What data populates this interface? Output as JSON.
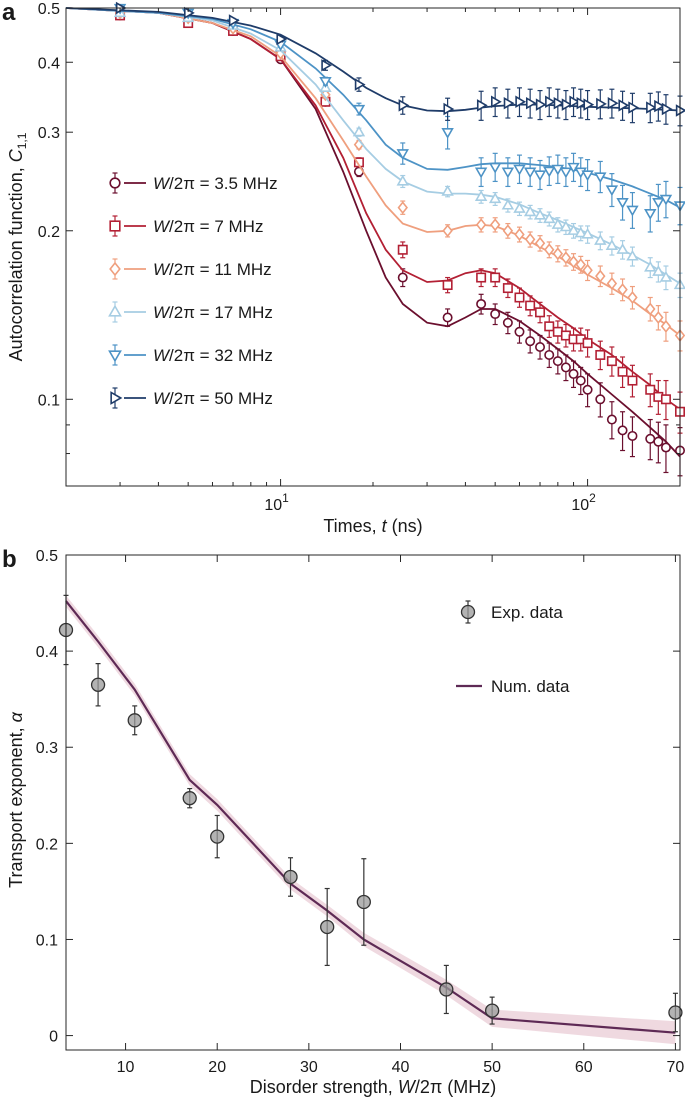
{
  "panel_a": {
    "label": "a",
    "ylabel_text": "Autocorrelation function, ",
    "ylabel_sym": "C",
    "ylabel_sub": "1,1",
    "xlabel_text": "Times, ",
    "xlabel_sym": "t",
    "xlabel_unit": " (ns)"
  },
  "panel_b": {
    "label": "b",
    "ylabel_text": "Transport exponent, ",
    "ylabel_sym": "α",
    "xlabel_text": "Disorder strength, ",
    "xlabel_sym": "W",
    "xlabel_mid": "/2π",
    "xlabel_unit": " (MHz)"
  },
  "chart_data": [
    {
      "type": "scatter",
      "panel": "a",
      "xscale": "log",
      "yscale": "log",
      "xlim": [
        2,
        200
      ],
      "ylim": [
        0.07,
        0.5
      ],
      "xlabel": "Times, t (ns)",
      "ylabel": "Autocorrelation function, C_1,1",
      "x_ticks": [
        {
          "value": 10,
          "base": "10",
          "exp": "1"
        },
        {
          "value": 100,
          "base": "10",
          "exp": "2"
        }
      ],
      "y_ticks": [
        0.1,
        0.2,
        0.3,
        0.4,
        0.5
      ],
      "y_tick_labels": [
        "0.1",
        "0.2",
        "0.3",
        "0.4",
        "0.5"
      ],
      "legend_position": "left-middle",
      "series": [
        {
          "name": "W/2π = 3.5 MHz",
          "label_sym": "W",
          "label_rest": "/2π = 3.5 MHz",
          "marker": "circle",
          "color": "#6b0f2e",
          "x": [
            3,
            5,
            7,
            10,
            14,
            18,
            25,
            35,
            45,
            50,
            55,
            60,
            65,
            70,
            75,
            80,
            85,
            90,
            95,
            100,
            110,
            120,
            130,
            140,
            160,
            170,
            180,
            200
          ],
          "y": [
            0.485,
            0.48,
            0.455,
            0.405,
            0.34,
            0.255,
            0.165,
            0.14,
            0.148,
            0.142,
            0.137,
            0.132,
            0.127,
            0.124,
            0.12,
            0.117,
            0.114,
            0.111,
            0.108,
            0.104,
            0.1,
            0.092,
            0.088,
            0.086,
            0.085,
            0.084,
            0.082,
            0.081
          ],
          "yerr": [
            0.004,
            0.004,
            0.004,
            0.004,
            0.005,
            0.005,
            0.006,
            0.005,
            0.006,
            0.006,
            0.006,
            0.006,
            0.006,
            0.006,
            0.006,
            0.006,
            0.006,
            0.006,
            0.006,
            0.007,
            0.007,
            0.007,
            0.007,
            0.007,
            0.007,
            0.007,
            0.008,
            0.008
          ],
          "fit_x": [
            2,
            4,
            6,
            8,
            10,
            13,
            16,
            19,
            22,
            25,
            30,
            35,
            40,
            45,
            50,
            60,
            70,
            80,
            90,
            100,
            120,
            140,
            160,
            180,
            200
          ],
          "fit_y": [
            0.5,
            0.49,
            0.47,
            0.44,
            0.405,
            0.33,
            0.255,
            0.2,
            0.165,
            0.148,
            0.137,
            0.135,
            0.14,
            0.145,
            0.145,
            0.138,
            0.13,
            0.123,
            0.117,
            0.111,
            0.102,
            0.095,
            0.089,
            0.084,
            0.079
          ]
        },
        {
          "name": "W/2π = 7 MHz",
          "label_sym": "W",
          "label_rest": "/2π = 7 MHz",
          "marker": "square",
          "color": "#b32034",
          "x": [
            3,
            5,
            7,
            10,
            14,
            18,
            25,
            35,
            45,
            50,
            55,
            60,
            65,
            70,
            75,
            80,
            85,
            90,
            95,
            100,
            110,
            120,
            130,
            140,
            160,
            170,
            180,
            200
          ],
          "y": [
            0.485,
            0.47,
            0.455,
            0.41,
            0.34,
            0.265,
            0.185,
            0.16,
            0.165,
            0.165,
            0.158,
            0.152,
            0.147,
            0.143,
            0.135,
            0.132,
            0.13,
            0.128,
            0.128,
            0.126,
            0.12,
            0.117,
            0.112,
            0.108,
            0.104,
            0.101,
            0.1,
            0.095
          ],
          "yerr": [
            0.004,
            0.004,
            0.004,
            0.004,
            0.005,
            0.005,
            0.006,
            0.005,
            0.006,
            0.006,
            0.006,
            0.006,
            0.006,
            0.006,
            0.006,
            0.006,
            0.006,
            0.006,
            0.006,
            0.007,
            0.007,
            0.007,
            0.007,
            0.007,
            0.007,
            0.007,
            0.008,
            0.008
          ],
          "fit_x": [
            2,
            4,
            6,
            8,
            10,
            13,
            16,
            19,
            22,
            25,
            30,
            35,
            40,
            45,
            50,
            60,
            70,
            80,
            90,
            100,
            120,
            140,
            160,
            180,
            200
          ],
          "fit_y": [
            0.5,
            0.49,
            0.47,
            0.44,
            0.405,
            0.335,
            0.27,
            0.215,
            0.185,
            0.17,
            0.162,
            0.163,
            0.168,
            0.17,
            0.168,
            0.158,
            0.148,
            0.14,
            0.134,
            0.128,
            0.12,
            0.112,
            0.106,
            0.1,
            0.096
          ]
        },
        {
          "name": "W/2π = 11 MHz",
          "label_sym": "W",
          "label_rest": "/2π = 11 MHz",
          "marker": "diamond",
          "color": "#ef9f7e",
          "x": [
            3,
            5,
            7,
            10,
            14,
            18,
            25,
            35,
            45,
            50,
            55,
            60,
            65,
            70,
            75,
            80,
            85,
            90,
            95,
            100,
            110,
            120,
            130,
            140,
            160,
            170,
            180,
            200
          ],
          "y": [
            0.49,
            0.48,
            0.46,
            0.415,
            0.35,
            0.285,
            0.22,
            0.2,
            0.205,
            0.205,
            0.2,
            0.197,
            0.193,
            0.19,
            0.185,
            0.182,
            0.179,
            0.176,
            0.174,
            0.17,
            0.166,
            0.161,
            0.157,
            0.152,
            0.145,
            0.14,
            0.135,
            0.13
          ],
          "yerr": [
            0.004,
            0.004,
            0.004,
            0.004,
            0.005,
            0.005,
            0.006,
            0.005,
            0.006,
            0.006,
            0.006,
            0.006,
            0.006,
            0.006,
            0.006,
            0.006,
            0.006,
            0.006,
            0.006,
            0.007,
            0.007,
            0.007,
            0.007,
            0.007,
            0.007,
            0.007,
            0.008,
            0.008
          ],
          "fit_x": [
            2,
            4,
            6,
            8,
            10,
            13,
            16,
            19,
            22,
            25,
            30,
            35,
            40,
            45,
            50,
            60,
            70,
            80,
            90,
            100,
            120,
            140,
            160,
            180,
            200
          ],
          "fit_y": [
            0.5,
            0.49,
            0.47,
            0.445,
            0.41,
            0.345,
            0.29,
            0.25,
            0.222,
            0.206,
            0.199,
            0.2,
            0.204,
            0.205,
            0.204,
            0.196,
            0.187,
            0.18,
            0.173,
            0.167,
            0.158,
            0.15,
            0.142,
            0.136,
            0.13
          ]
        },
        {
          "name": "W/2π = 17 MHz",
          "label_sym": "W",
          "label_rest": "/2π = 17 MHz",
          "marker": "triangle-up",
          "color": "#a6cde3",
          "x": [
            3,
            5,
            7,
            10,
            14,
            18,
            25,
            35,
            45,
            50,
            55,
            60,
            65,
            70,
            75,
            80,
            85,
            90,
            95,
            100,
            110,
            120,
            130,
            140,
            160,
            170,
            180,
            200
          ],
          "y": [
            0.49,
            0.48,
            0.465,
            0.425,
            0.36,
            0.3,
            0.245,
            0.235,
            0.23,
            0.228,
            0.222,
            0.219,
            0.216,
            0.213,
            0.21,
            0.205,
            0.203,
            0.2,
            0.198,
            0.197,
            0.192,
            0.188,
            0.185,
            0.18,
            0.172,
            0.169,
            0.165,
            0.16
          ],
          "yerr": [
            0.004,
            0.004,
            0.004,
            0.004,
            0.005,
            0.005,
            0.006,
            0.005,
            0.006,
            0.006,
            0.006,
            0.006,
            0.006,
            0.006,
            0.006,
            0.006,
            0.006,
            0.006,
            0.006,
            0.007,
            0.007,
            0.007,
            0.007,
            0.007,
            0.007,
            0.007,
            0.008,
            0.008
          ],
          "fit_x": [
            2,
            4,
            6,
            8,
            10,
            13,
            16,
            19,
            22,
            25,
            30,
            35,
            40,
            45,
            50,
            60,
            70,
            80,
            90,
            100,
            120,
            140,
            160,
            180,
            200
          ],
          "fit_y": [
            0.5,
            0.49,
            0.475,
            0.45,
            0.42,
            0.365,
            0.315,
            0.28,
            0.258,
            0.245,
            0.235,
            0.233,
            0.233,
            0.232,
            0.23,
            0.223,
            0.215,
            0.209,
            0.203,
            0.198,
            0.189,
            0.181,
            0.174,
            0.167,
            0.161
          ]
        },
        {
          "name": "W/2π = 32 MHz",
          "label_sym": "W",
          "label_rest": "/2π = 32 MHz",
          "marker": "triangle-down",
          "color": "#4d93c6",
          "x": [
            3,
            5,
            7,
            10,
            14,
            18,
            25,
            35,
            45,
            50,
            55,
            60,
            65,
            70,
            75,
            80,
            85,
            90,
            95,
            100,
            110,
            120,
            130,
            140,
            160,
            170,
            180,
            200
          ],
          "y": [
            0.5,
            0.49,
            0.47,
            0.43,
            0.37,
            0.33,
            0.275,
            0.3,
            0.255,
            0.26,
            0.255,
            0.258,
            0.255,
            0.252,
            0.256,
            0.258,
            0.255,
            0.26,
            0.255,
            0.252,
            0.25,
            0.237,
            0.225,
            0.218,
            0.215,
            0.225,
            0.228,
            0.222
          ],
          "yerr": [
            0.004,
            0.004,
            0.004,
            0.004,
            0.006,
            0.008,
            0.012,
            0.02,
            0.015,
            0.015,
            0.015,
            0.015,
            0.015,
            0.015,
            0.015,
            0.015,
            0.015,
            0.015,
            0.015,
            0.016,
            0.016,
            0.016,
            0.016,
            0.016,
            0.016,
            0.017,
            0.017,
            0.017
          ],
          "fit_x": [
            2,
            4,
            6,
            8,
            10,
            13,
            16,
            19,
            22,
            25,
            30,
            35,
            40,
            45,
            50,
            60,
            70,
            80,
            90,
            100,
            120,
            140,
            160,
            180,
            200
          ],
          "fit_y": [
            0.5,
            0.49,
            0.478,
            0.458,
            0.435,
            0.39,
            0.35,
            0.315,
            0.285,
            0.27,
            0.258,
            0.257,
            0.26,
            0.263,
            0.264,
            0.264,
            0.262,
            0.26,
            0.257,
            0.254,
            0.247,
            0.24,
            0.233,
            0.227,
            0.22
          ]
        },
        {
          "name": "W/2π = 50 MHz",
          "label_sym": "W",
          "label_rest": "/2π = 50 MHz",
          "marker": "triangle-right",
          "color": "#1f3c69",
          "x": [
            3,
            5,
            7,
            10,
            14,
            18,
            25,
            35,
            45,
            50,
            55,
            60,
            65,
            70,
            75,
            80,
            85,
            90,
            95,
            100,
            110,
            120,
            130,
            140,
            160,
            170,
            180,
            200
          ],
          "y": [
            0.5,
            0.49,
            0.475,
            0.44,
            0.395,
            0.365,
            0.335,
            0.33,
            0.335,
            0.34,
            0.338,
            0.34,
            0.338,
            0.336,
            0.34,
            0.338,
            0.336,
            0.34,
            0.338,
            0.336,
            0.337,
            0.338,
            0.335,
            0.332,
            0.332,
            0.334,
            0.33,
            0.328
          ],
          "yerr": [
            0.004,
            0.004,
            0.004,
            0.005,
            0.008,
            0.01,
            0.012,
            0.015,
            0.02,
            0.02,
            0.02,
            0.02,
            0.02,
            0.02,
            0.02,
            0.02,
            0.02,
            0.02,
            0.02,
            0.02,
            0.02,
            0.02,
            0.02,
            0.02,
            0.02,
            0.02,
            0.02,
            0.02
          ],
          "fit_x": [
            2,
            4,
            6,
            8,
            10,
            13,
            16,
            19,
            22,
            25,
            30,
            35,
            40,
            45,
            50,
            60,
            70,
            80,
            90,
            100,
            120,
            140,
            160,
            180,
            200
          ],
          "fit_y": [
            0.5,
            0.492,
            0.48,
            0.465,
            0.448,
            0.415,
            0.385,
            0.36,
            0.345,
            0.335,
            0.328,
            0.327,
            0.329,
            0.332,
            0.334,
            0.336,
            0.336,
            0.335,
            0.334,
            0.333,
            0.332,
            0.331,
            0.33,
            0.329,
            0.328
          ]
        }
      ]
    },
    {
      "type": "scatter",
      "panel": "b",
      "xlim": [
        3.5,
        70.5
      ],
      "ylim": [
        -0.015,
        0.5
      ],
      "xlabel": "Disorder strength, W/2π (MHz)",
      "ylabel": "Transport exponent, α",
      "x_ticks": [
        10,
        20,
        30,
        40,
        50,
        60,
        70
      ],
      "x_tick_labels": [
        "10",
        "20",
        "30",
        "40",
        "50",
        "60",
        "70"
      ],
      "y_ticks": [
        0,
        0.1,
        0.2,
        0.3,
        0.4,
        0.5
      ],
      "y_tick_labels": [
        "0",
        "0.1",
        "0.2",
        "0.3",
        "0.4",
        "0.5"
      ],
      "legend_position": "top-right",
      "exp": {
        "name": "Exp. data",
        "color": "#9a9a9a",
        "x": [
          3.5,
          7,
          11,
          17,
          20,
          28,
          32,
          36,
          45,
          50,
          70
        ],
        "y": [
          0.422,
          0.365,
          0.328,
          0.247,
          0.207,
          0.165,
          0.113,
          0.139,
          0.048,
          0.026,
          0.024
        ],
        "yerr": [
          0.036,
          0.022,
          0.015,
          0.01,
          0.022,
          0.02,
          0.04,
          0.045,
          0.025,
          0.014,
          0.02
        ]
      },
      "num": {
        "name": "Num. data",
        "color": "#5e2a55",
        "band_color": "#e9ccd6",
        "x": [
          3.5,
          7,
          11,
          17,
          20,
          28,
          32,
          36,
          45,
          50,
          70
        ],
        "y": [
          0.452,
          0.41,
          0.36,
          0.266,
          0.24,
          0.158,
          0.13,
          0.1,
          0.05,
          0.018,
          0.003
        ],
        "band": [
          0.006,
          0.006,
          0.006,
          0.006,
          0.006,
          0.006,
          0.006,
          0.007,
          0.008,
          0.009,
          0.012
        ]
      }
    }
  ]
}
